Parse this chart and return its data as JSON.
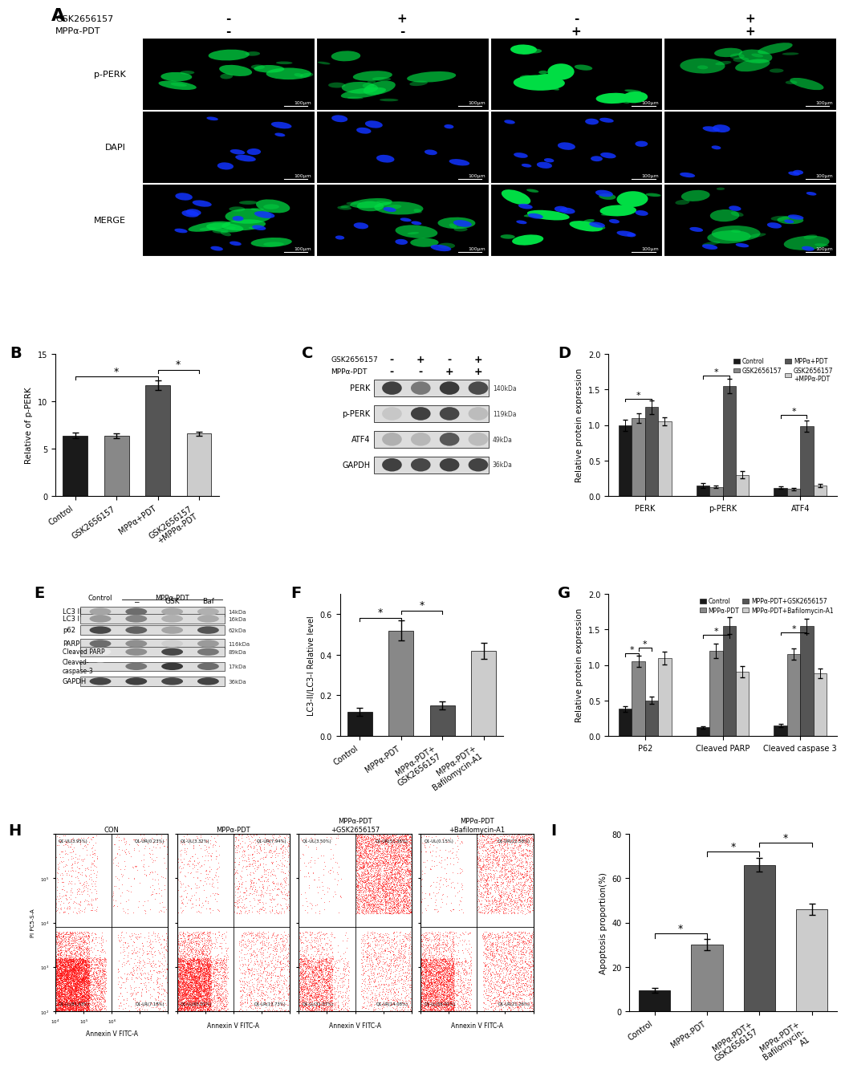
{
  "panel_A": {
    "col_signs_gsk": [
      "-",
      "+",
      "-",
      "+"
    ],
    "col_signs_mpp": [
      "-",
      "-",
      "+",
      "+"
    ],
    "row_labels": [
      "p-PERK",
      "DAPI",
      "MERGE"
    ],
    "header_label1": "GSK2656157",
    "header_label2": "MPPα-PDT",
    "green": "#00dd44",
    "blue": "#1133ff",
    "cell_intensities": [
      0.55,
      0.45,
      1.0,
      0.35
    ]
  },
  "panel_B": {
    "categories": [
      "Control",
      "GSK2656157",
      "MPPα+PDT",
      "GSK2656157\n+MPPα-PDT"
    ],
    "values": [
      6.4,
      6.4,
      11.7,
      6.6
    ],
    "errors": [
      0.3,
      0.25,
      0.5,
      0.2
    ],
    "colors": [
      "#1a1a1a",
      "#888888",
      "#555555",
      "#cccccc"
    ],
    "ylabel": "Relative of p-PERK",
    "ylim": [
      0,
      15
    ],
    "yticks": [
      0,
      5,
      10,
      15
    ]
  },
  "panel_D": {
    "groups": [
      "PERK",
      "p-PERK",
      "ATF4"
    ],
    "series_names": [
      "Control",
      "GSK2656157",
      "MPPα+PDT",
      "GSK2656157+MPPα-PDT"
    ],
    "values": [
      [
        1.0,
        0.15,
        0.12
      ],
      [
        1.1,
        0.13,
        0.1
      ],
      [
        1.25,
        1.55,
        0.98
      ],
      [
        1.05,
        0.3,
        0.15
      ]
    ],
    "errors": [
      [
        0.08,
        0.03,
        0.02
      ],
      [
        0.07,
        0.02,
        0.02
      ],
      [
        0.1,
        0.1,
        0.08
      ],
      [
        0.06,
        0.05,
        0.02
      ]
    ],
    "colors": [
      "#1a1a1a",
      "#888888",
      "#555555",
      "#cccccc"
    ],
    "legend_labels": [
      "Control",
      "GSK2656157",
      "MPPα+PDT",
      "GSK2656157\n+MPPα-PDT"
    ],
    "ylabel": "Relative protein expression",
    "ylim": [
      0,
      2.0
    ],
    "yticks": [
      0.0,
      0.5,
      1.0,
      1.5,
      2.0
    ]
  },
  "panel_F": {
    "categories": [
      "Control",
      "MPPα-PDT",
      "MPPα-PDT+\nGSK2656157",
      "MPPα-PDT+\nBafilomycin-A1"
    ],
    "values": [
      0.12,
      0.52,
      0.15,
      0.42
    ],
    "errors": [
      0.02,
      0.05,
      0.02,
      0.04
    ],
    "colors": [
      "#1a1a1a",
      "#888888",
      "#555555",
      "#cccccc"
    ],
    "ylabel": "LC3-II/LC3-I Relative level",
    "ylim": [
      0,
      0.7
    ],
    "yticks": [
      0.0,
      0.2,
      0.4,
      0.6
    ]
  },
  "panel_G": {
    "groups": [
      "P62",
      "Cleaved PARP",
      "Cleaved caspase 3"
    ],
    "series_names": [
      "Control",
      "MPPα-PDT",
      "MPPα-PDT+GSK2656157",
      "MPPα-PDT+Bafilomycin-A1"
    ],
    "values": [
      [
        0.38,
        0.12,
        0.15
      ],
      [
        1.05,
        1.2,
        1.15
      ],
      [
        0.5,
        1.55,
        1.55
      ],
      [
        1.1,
        0.9,
        0.88
      ]
    ],
    "errors": [
      [
        0.04,
        0.02,
        0.02
      ],
      [
        0.08,
        0.1,
        0.08
      ],
      [
        0.05,
        0.12,
        0.1
      ],
      [
        0.09,
        0.08,
        0.07
      ]
    ],
    "colors": [
      "#1a1a1a",
      "#888888",
      "#555555",
      "#cccccc"
    ],
    "legend_labels": [
      "Control",
      "MPPα-PDT",
      "MPPα-PDT+GSK2656157",
      "MPPα-PDT+Bafilomycin-A1"
    ],
    "ylabel": "Relative protein expression",
    "ylim": [
      0,
      2.0
    ],
    "yticks": [
      0.0,
      0.5,
      1.0,
      1.5,
      2.0
    ]
  },
  "panel_H": {
    "titles": [
      "CON",
      "MPPα-PDT",
      "MPPα-PDT\n+GSK2656157",
      "MPPα-PDT\n+Bafilomycin-A1"
    ],
    "quads_UL": [
      "Q1-UL(3.95%)",
      "Q1-UL(3.32%)",
      "Q1-UL(3.50%)",
      "Q1-UL(0.15%)"
    ],
    "quads_UR": [
      "Q1-UR(0.23%)",
      "Q1-UR(7.94%)",
      "Q1-UR(51.36%)",
      "Q1-UR(22.58%)"
    ],
    "quads_LL": [
      "Q1-LL(81.63%)",
      "Q1-LL(65.01%)",
      "Q1-LL(31.07%)",
      "Q1-LL(56.01%)"
    ],
    "quads_LR": [
      "Q1-LR(7.18%)",
      "Q1-LR(13.73%)",
      "Q1-LR(14.08%)",
      "Q1-LR(21.26%)"
    ],
    "n_live": [
      7000,
      5000,
      2200,
      3500
    ],
    "n_early_apop": [
      500,
      900,
      1000,
      1500
    ],
    "n_late_apop": [
      200,
      650,
      4000,
      1800
    ]
  },
  "panel_I": {
    "categories": [
      "Control",
      "MPPα-PDT",
      "MPPα-PDT+\nGSK2656157",
      "MPPα-PDT+\nBafilomycin-\nA1"
    ],
    "values": [
      9.5,
      30.0,
      66.0,
      46.0
    ],
    "errors": [
      1.0,
      2.5,
      3.0,
      2.5
    ],
    "colors": [
      "#1a1a1a",
      "#888888",
      "#555555",
      "#cccccc"
    ],
    "ylabel": "Apoptosis proportion(%)",
    "ylim": [
      0,
      80
    ],
    "yticks": [
      0,
      20,
      40,
      60,
      80
    ]
  }
}
